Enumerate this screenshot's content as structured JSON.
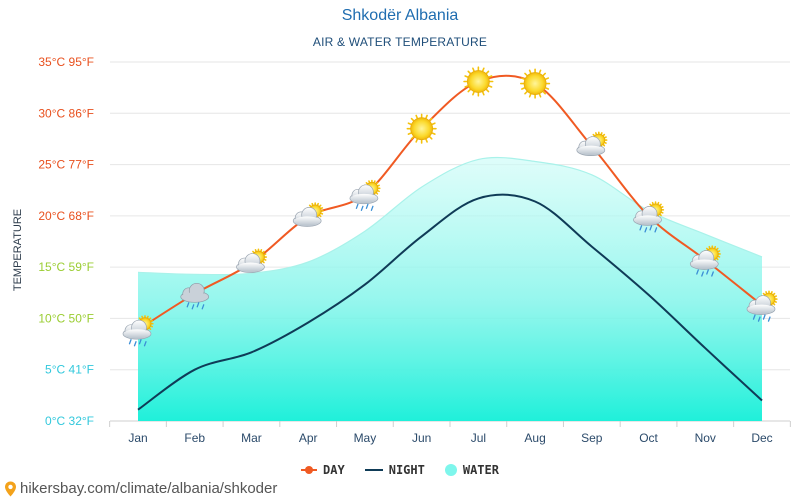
{
  "title": "Shkodër Albania",
  "subtitle": "AIR & WATER TEMPERATURE",
  "source_url": "hikersbay.com/climate/albania/shkoder",
  "colors": {
    "day": "#f05a23",
    "night": "#0f3b57",
    "water": "#7ef6ec",
    "water_deep": "#2ef0dc",
    "axis_warm": "#e8501e",
    "axis_mid": "#9acd32",
    "axis_cool": "#32c8dc",
    "title": "#1f6db0"
  },
  "chart_data": {
    "type": "line",
    "title": "Shkodër Albania",
    "subtitle": "AIR & WATER TEMPERATURE",
    "ylabel": "TEMPERATURE",
    "xlabel": "",
    "categories": [
      "Jan",
      "Feb",
      "Mar",
      "Apr",
      "May",
      "Jun",
      "Jul",
      "Aug",
      "Sep",
      "Oct",
      "Nov",
      "Dec"
    ],
    "ylim": [
      0,
      35
    ],
    "yticks": [
      {
        "value": 35,
        "label": "35°C 95°F"
      },
      {
        "value": 30,
        "label": "30°C 86°F"
      },
      {
        "value": 25,
        "label": "25°C 77°F"
      },
      {
        "value": 20,
        "label": "20°C 68°F"
      },
      {
        "value": 15,
        "label": "15°C 59°F"
      },
      {
        "value": 10,
        "label": "10°C 50°F"
      },
      {
        "value": 5,
        "label": "5°C 41°F"
      },
      {
        "value": 0,
        "label": "0°C 32°F"
      }
    ],
    "grid": true,
    "legend_position": "bottom",
    "series": [
      {
        "name": "DAY",
        "kind": "line-marker",
        "values": [
          8.9,
          12.4,
          15.4,
          19.9,
          22.1,
          28.5,
          33.1,
          32.9,
          26.8,
          20.0,
          15.7,
          11.3
        ]
      },
      {
        "name": "NIGHT",
        "kind": "line",
        "values": [
          1.1,
          5.0,
          6.7,
          9.6,
          13.3,
          18.0,
          21.7,
          21.4,
          17.0,
          12.3,
          7.1,
          2.0
        ]
      },
      {
        "name": "WATER",
        "kind": "area",
        "values": [
          14.5,
          14.3,
          14.4,
          15.5,
          18.5,
          22.8,
          25.5,
          25.3,
          24.0,
          20.5,
          18.2,
          16.0
        ]
      }
    ],
    "weather_icons": [
      "rain-cloud-sun",
      "rain-cloud",
      "cloud-sun",
      "cloud-sun",
      "rain-cloud-sun",
      "sun",
      "sun",
      "sun",
      "cloud-sun",
      "rain-cloud-sun",
      "rain-cloud-sun",
      "rain-cloud-sun"
    ]
  }
}
